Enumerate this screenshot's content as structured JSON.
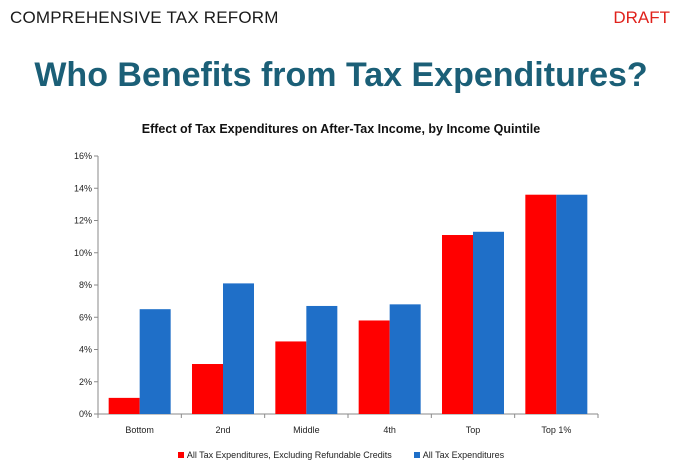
{
  "header": {
    "left": "COMPREHENSIVE TAX REFORM",
    "right": "DRAFT"
  },
  "main_title": "Who Benefits from Tax Expenditures?",
  "colors": {
    "title": "#1b5f77",
    "draft": "#e0211b",
    "series_red": "#ff0000",
    "series_blue": "#1f6fc8"
  },
  "chart_data": {
    "type": "bar",
    "title": "Effect of Tax Expenditures on After-Tax Income, by Income Quintile",
    "xlabel": "",
    "ylabel": "",
    "categories": [
      "Bottom",
      "2nd",
      "Middle",
      "4th",
      "Top",
      "Top 1%"
    ],
    "series": [
      {
        "name": "All Tax Expenditures, Excluding Refundable Credits",
        "color": "#ff0000",
        "values": [
          1.0,
          3.1,
          4.5,
          5.8,
          11.1,
          13.6
        ]
      },
      {
        "name": "All Tax Expenditures",
        "color": "#1f6fc8",
        "values": [
          6.5,
          8.1,
          6.7,
          6.8,
          11.3,
          13.6
        ]
      }
    ],
    "ylim": [
      0,
      16
    ],
    "yticks": [
      0,
      2,
      4,
      6,
      8,
      10,
      12,
      14,
      16
    ],
    "ytick_labels": [
      "0%",
      "2%",
      "4%",
      "6%",
      "8%",
      "10%",
      "12%",
      "14%",
      "16%"
    ],
    "grid": false,
    "legend_position": "bottom"
  }
}
